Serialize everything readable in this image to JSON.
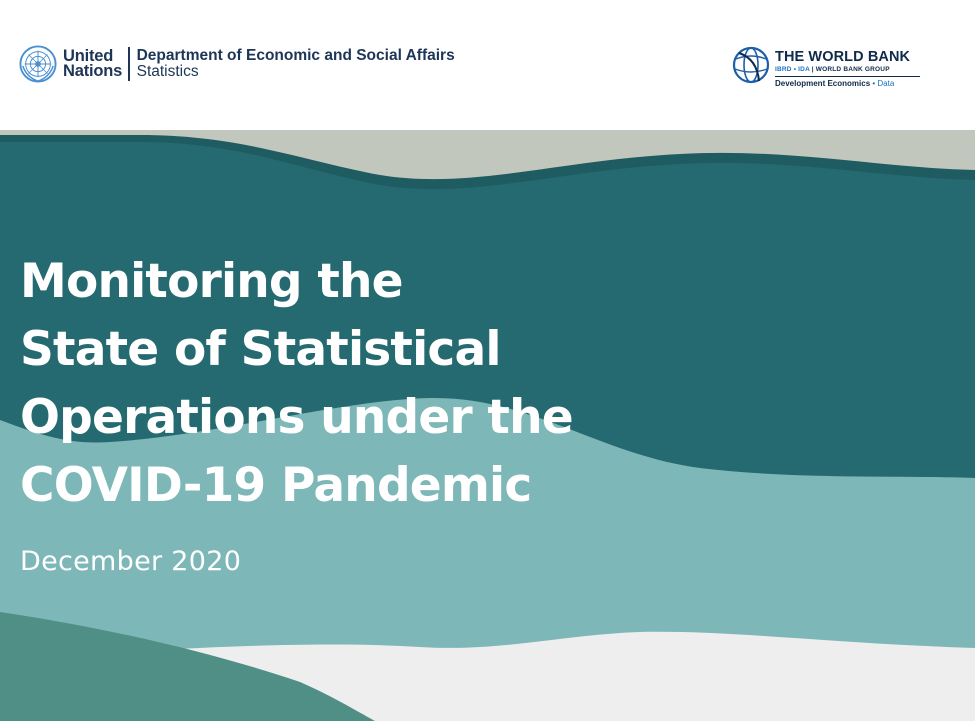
{
  "header": {
    "un": {
      "name_line1": "United",
      "name_line2": "Nations",
      "dept_line1": "Department of Economic and Social Affairs",
      "dept_line2": "Statistics",
      "emblem_icon": "un-emblem-icon"
    },
    "world_bank": {
      "title": "THE WORLD BANK",
      "sub_left": "IBRD • IDA",
      "sub_sep": " | ",
      "sub_right": "WORLD BANK GROUP",
      "dev": "Development Economics",
      "dev_sep": " • ",
      "data_label": "Data",
      "globe_icon": "world-bank-globe-icon"
    }
  },
  "report": {
    "title_lines": [
      "Monitoring the",
      "State of Statistical",
      "Operations under the",
      "COVID-19 Pandemic"
    ],
    "date": "December 2020"
  },
  "colors": {
    "dark_teal": "#246a70",
    "mid_teal": "#7db7b8",
    "sage": "#c2c7bd",
    "light_gray": "#eeeeee",
    "green_band": "#4f8f86",
    "navy": "#1d3557",
    "wb_blue": "#1a73c4"
  }
}
